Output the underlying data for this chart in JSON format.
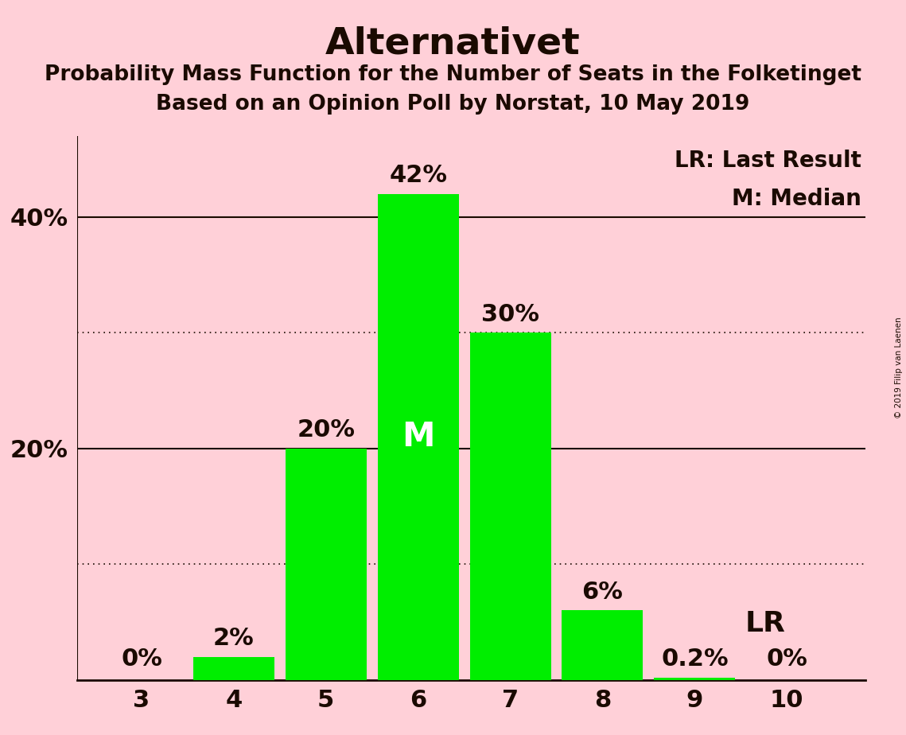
{
  "title": "Alternativet",
  "subtitle1": "Probability Mass Function for the Number of Seats in the Folketinget",
  "subtitle2": "Based on an Opinion Poll by Norstat, 10 May 2019",
  "copyright": "© 2019 Filip van Laenen",
  "seats": [
    3,
    4,
    5,
    6,
    7,
    8,
    9,
    10
  ],
  "probabilities": [
    0.0,
    2.0,
    20.0,
    42.0,
    30.0,
    6.0,
    0.2,
    0.0
  ],
  "bar_color": "#00ee00",
  "median_seat": 6,
  "last_result_seat": 9,
  "background_color": "#ffd0d8",
  "ytick_labels": [
    "20%",
    "40%"
  ],
  "ytick_values": [
    20,
    40
  ],
  "ylim": [
    0,
    47
  ],
  "legend_lr": "LR: Last Result",
  "legend_m": "M: Median",
  "grid_solid_values": [
    20,
    40
  ],
  "grid_dotted_values": [
    10,
    30
  ],
  "title_fontsize": 34,
  "subtitle_fontsize": 19,
  "bar_label_fontsize": 22,
  "axis_tick_fontsize": 22,
  "legend_fontsize": 20,
  "median_label": "M",
  "lr_label": "LR",
  "median_label_fontsize": 30,
  "lr_label_fontsize": 26
}
